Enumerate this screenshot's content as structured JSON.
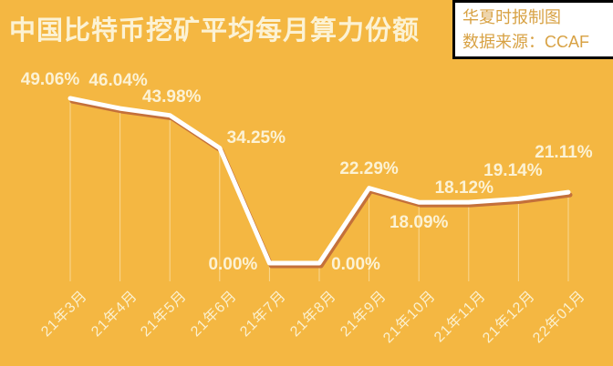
{
  "title": "中国比特币挖矿平均每月算力份额",
  "credit": {
    "line1": "华夏时报制图",
    "line2": "数据来源：CCAF"
  },
  "colors": {
    "background": "#F4B742",
    "text_cream": "#FCF2D4",
    "line": "#FFFFFF",
    "line_shadow": "#C4703A",
    "dropline": "rgba(253,242,212,0.55)",
    "credit_text": "#D8A244",
    "credit_background": "#FFFFFF",
    "credit_border": "#000000"
  },
  "chart_data": {
    "type": "line",
    "title": "中国比特币挖矿平均每月算力份额",
    "categories": [
      "21年3月",
      "21年4月",
      "21年5月",
      "21年6月",
      "21年7月",
      "21年8月",
      "21年9月",
      "21年10月",
      "21年11月",
      "21年12月",
      "22年01月"
    ],
    "values": [
      49.06,
      46.04,
      43.98,
      34.25,
      0.0,
      0.0,
      22.29,
      18.09,
      18.12,
      19.14,
      21.11
    ],
    "point_labels": [
      "49.06%",
      "46.04%",
      "43.98%",
      "34.25%",
      "0.00%",
      "0.00%",
      "22.29%",
      "18.09%",
      "18.12%",
      "19.14%",
      "21.11%"
    ],
    "xlabel": "",
    "ylabel": "",
    "ylim": [
      0,
      55
    ],
    "grid": false,
    "legend": "none",
    "annotations": "value labels shown at every point; thin vertical droplines from each point to the axis"
  }
}
